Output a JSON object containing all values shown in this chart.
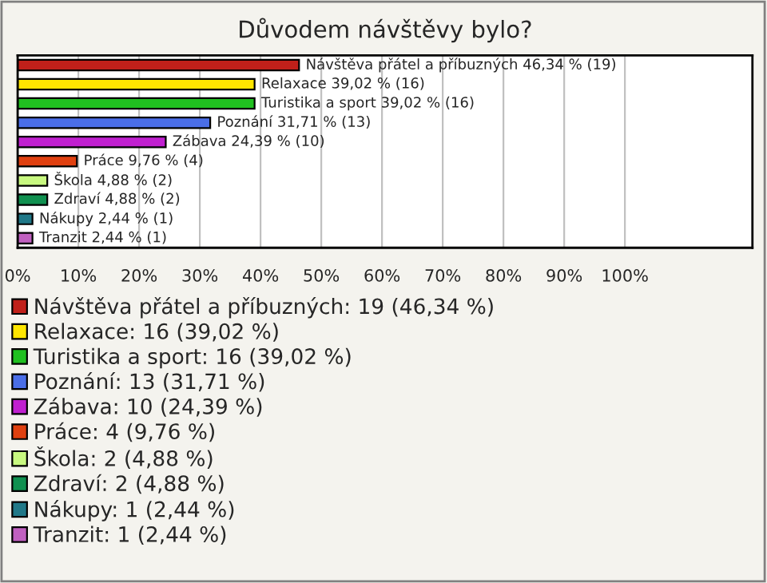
{
  "chart_data": {
    "type": "bar",
    "orientation": "horizontal",
    "stacked": true,
    "title": "Důvodem návštěvy bylo?",
    "categories": [
      null,
      null,
      null,
      null,
      null,
      null,
      null,
      null,
      null,
      null
    ],
    "series": [
      {
        "name": "Návštěva přátel a příbuzných: 19 (46,34 %)",
        "color": "#c0201a",
        "values": [
          46.34,
          null,
          null,
          null,
          null,
          null,
          null,
          null,
          null,
          null
        ],
        "value_labels": [
          "Návštěva přátel a příbuzných 46,34 % (19)",
          null,
          null,
          null,
          null,
          null,
          null,
          null,
          null,
          null
        ]
      },
      {
        "name": "Relaxace: 16 (39,02 %)",
        "color": "#ffe600",
        "values": [
          null,
          39.02,
          null,
          null,
          null,
          null,
          null,
          null,
          null,
          null
        ],
        "value_labels": [
          null,
          "Relaxace 39,02 % (16)",
          null,
          null,
          null,
          null,
          null,
          null,
          null,
          null
        ]
      },
      {
        "name": "Turistika a sport: 16 (39,02 %)",
        "color": "#20c020",
        "values": [
          null,
          null,
          39.02,
          null,
          null,
          null,
          null,
          null,
          null,
          null
        ],
        "value_labels": [
          null,
          null,
          "Turistika a sport 39,02 % (16)",
          null,
          null,
          null,
          null,
          null,
          null,
          null
        ]
      },
      {
        "name": "Poznání: 13 (31,71 %)",
        "color": "#4a6ee8",
        "values": [
          null,
          null,
          null,
          31.71,
          null,
          null,
          null,
          null,
          null,
          null
        ],
        "value_labels": [
          null,
          null,
          null,
          "Poznání 31,71 % (13)",
          null,
          null,
          null,
          null,
          null,
          null
        ]
      },
      {
        "name": "Zábava: 10 (24,39 %)",
        "color": "#c020d0",
        "values": [
          null,
          null,
          null,
          null,
          24.39,
          null,
          null,
          null,
          null,
          null
        ],
        "value_labels": [
          null,
          null,
          null,
          null,
          "Zábava 24,39 % (10)",
          null,
          null,
          null,
          null,
          null
        ]
      },
      {
        "name": "Práce: 4 (9,76 %)",
        "color": "#e04010",
        "values": [
          null,
          null,
          null,
          null,
          null,
          9.76,
          null,
          null,
          null,
          null
        ],
        "value_labels": [
          null,
          null,
          null,
          null,
          null,
          "Práce 9,76 % (4)",
          null,
          null,
          null,
          null
        ]
      },
      {
        "name": "Škola: 2 (4,88 %)",
        "color": "#c8f880",
        "values": [
          null,
          null,
          null,
          null,
          null,
          null,
          4.88,
          null,
          null,
          null
        ],
        "value_labels": [
          null,
          null,
          null,
          null,
          null,
          null,
          "Škola 4,88 % (2)",
          null,
          null,
          null
        ]
      },
      {
        "name": "Zdraví: 2 (4,88 %)",
        "color": "#109050",
        "values": [
          null,
          null,
          null,
          null,
          null,
          null,
          null,
          4.88,
          null,
          null
        ],
        "value_labels": [
          null,
          null,
          null,
          null,
          null,
          null,
          null,
          "Zdraví 4,88 % (2)",
          null,
          null
        ]
      },
      {
        "name": "Nákupy: 1 (2,44 %)",
        "color": "#207888",
        "values": [
          null,
          null,
          null,
          null,
          null,
          null,
          null,
          null,
          2.44,
          null
        ],
        "value_labels": [
          null,
          null,
          null,
          null,
          null,
          null,
          null,
          null,
          "Nákupy 2,44 % (1)",
          null
        ]
      },
      {
        "name": "Tranzit: 1 (2,44 %)",
        "color": "#c060c0",
        "values": [
          null,
          null,
          null,
          null,
          null,
          null,
          null,
          null,
          null,
          2.44
        ],
        "value_labels": [
          null,
          null,
          null,
          null,
          null,
          null,
          null,
          null,
          null,
          "Tranzit 2,44 % (1)"
        ]
      }
    ],
    "xlim": [
      0,
      121
    ],
    "xticks": [
      {
        "value": 0,
        "label": "0%"
      },
      {
        "value": 10,
        "label": "10%"
      },
      {
        "value": 20,
        "label": "20%"
      },
      {
        "value": 30,
        "label": "30%"
      },
      {
        "value": 40,
        "label": "40%"
      },
      {
        "value": 50,
        "label": "50%"
      },
      {
        "value": 60,
        "label": "60%"
      },
      {
        "value": 70,
        "label": "70%"
      },
      {
        "value": 80,
        "label": "80%"
      },
      {
        "value": 90,
        "label": "90%"
      },
      {
        "value": 100,
        "label": "100%"
      }
    ],
    "grid": "x",
    "legend": "bottom",
    "tick_labels": "x"
  }
}
